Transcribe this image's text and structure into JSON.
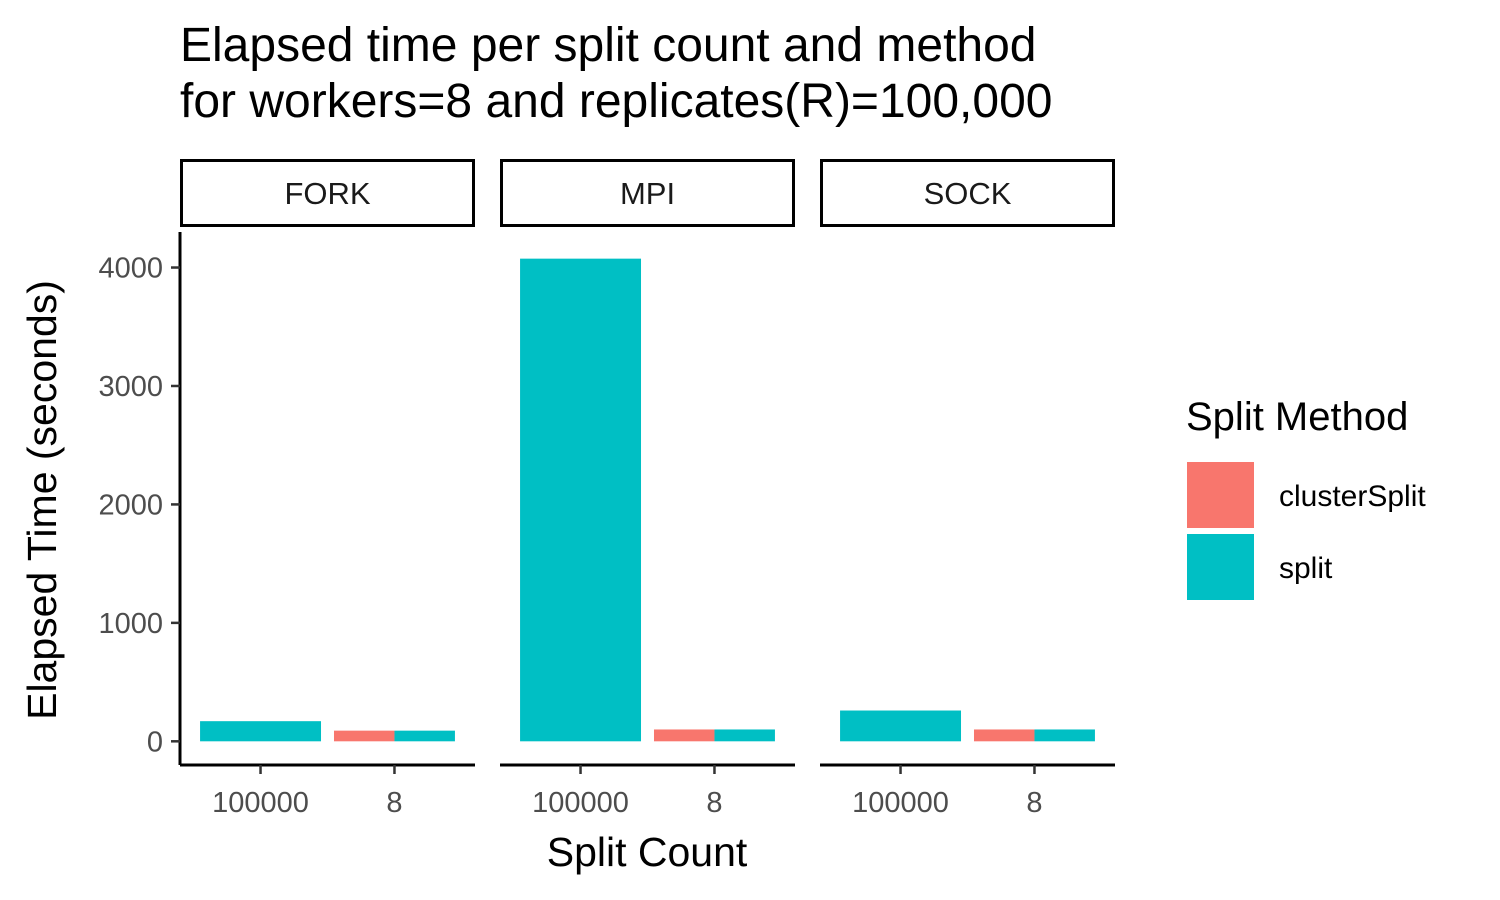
{
  "chart_data": {
    "type": "bar",
    "title_lines": [
      "Elapsed time per split count and method",
      "for workers=8 and replicates(R)=100,000"
    ],
    "xlabel": "Split Count",
    "ylabel": "Elapsed Time (seconds)",
    "ylim": [
      -200,
      4300
    ],
    "yticks": [
      0,
      1000,
      2000,
      3000,
      4000
    ],
    "yticklabels": [
      "0",
      "1000",
      "2000",
      "3000",
      "4000"
    ],
    "categories": [
      "100000",
      "8"
    ],
    "facets": [
      {
        "name": "FORK",
        "bars": [
          {
            "category": "100000",
            "method": "split",
            "value": 170
          },
          {
            "category": "8",
            "method": "clusterSplit",
            "value": 90
          },
          {
            "category": "8",
            "method": "split",
            "value": 90
          }
        ]
      },
      {
        "name": "MPI",
        "bars": [
          {
            "category": "100000",
            "method": "split",
            "value": 4075
          },
          {
            "category": "8",
            "method": "clusterSplit",
            "value": 100
          },
          {
            "category": "8",
            "method": "split",
            "value": 100
          }
        ]
      },
      {
        "name": "SOCK",
        "bars": [
          {
            "category": "100000",
            "method": "split",
            "value": 260
          },
          {
            "category": "8",
            "method": "clusterSplit",
            "value": 100
          },
          {
            "category": "8",
            "method": "split",
            "value": 100
          }
        ]
      }
    ],
    "legend": {
      "title": "Split Method",
      "position": "right",
      "entries": [
        {
          "name": "clusterSplit",
          "color": "#F8766D"
        },
        {
          "name": "split",
          "color": "#00BFC4"
        }
      ]
    },
    "grid": false
  }
}
